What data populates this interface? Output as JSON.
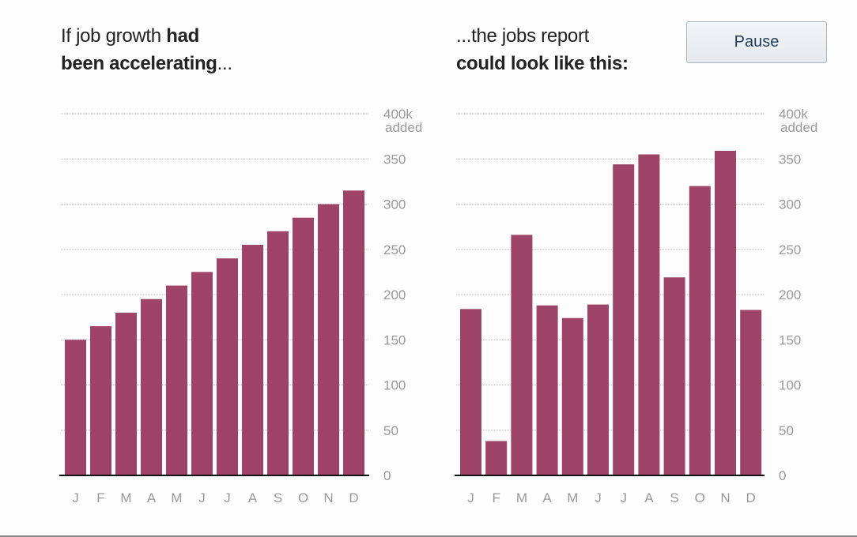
{
  "colors": {
    "bar": "#9e4468",
    "grid": "#c4c4c4",
    "axis": "#111111",
    "tick_text": "#999999",
    "title_text": "#222222"
  },
  "controls": {
    "pause_label": "Pause"
  },
  "chart_data": [
    {
      "type": "bar",
      "title_parts": [
        {
          "text": "If job growth ",
          "bold": false
        },
        {
          "text": "had",
          "bold": true
        },
        {
          "text": "\n",
          "bold": false
        },
        {
          "text": "been accelerating",
          "bold": true
        },
        {
          "text": "...",
          "bold": false
        }
      ],
      "categories": [
        "J",
        "F",
        "M",
        "A",
        "M",
        "J",
        "J",
        "A",
        "S",
        "O",
        "N",
        "D"
      ],
      "values": [
        150,
        165,
        180,
        195,
        210,
        225,
        240,
        255,
        270,
        285,
        300,
        315
      ],
      "ylim": [
        0,
        400
      ],
      "y_ticks": [
        "0",
        "50",
        "100",
        "150",
        "200",
        "250",
        "300",
        "350",
        "400k"
      ],
      "y_top_unit": "added",
      "grid": true
    },
    {
      "type": "bar",
      "title_parts": [
        {
          "text": "...the jobs report",
          "bold": false
        },
        {
          "text": "\n",
          "bold": false
        },
        {
          "text": "could look like this:",
          "bold": true
        }
      ],
      "categories": [
        "J",
        "F",
        "M",
        "A",
        "M",
        "J",
        "J",
        "A",
        "S",
        "O",
        "N",
        "D"
      ],
      "values": [
        184,
        38,
        266,
        188,
        174,
        189,
        344,
        355,
        219,
        320,
        359,
        183
      ],
      "ylim": [
        0,
        400
      ],
      "y_ticks": [
        "0",
        "50",
        "100",
        "150",
        "200",
        "250",
        "300",
        "350",
        "400k"
      ],
      "y_top_unit": "added",
      "grid": true
    }
  ]
}
